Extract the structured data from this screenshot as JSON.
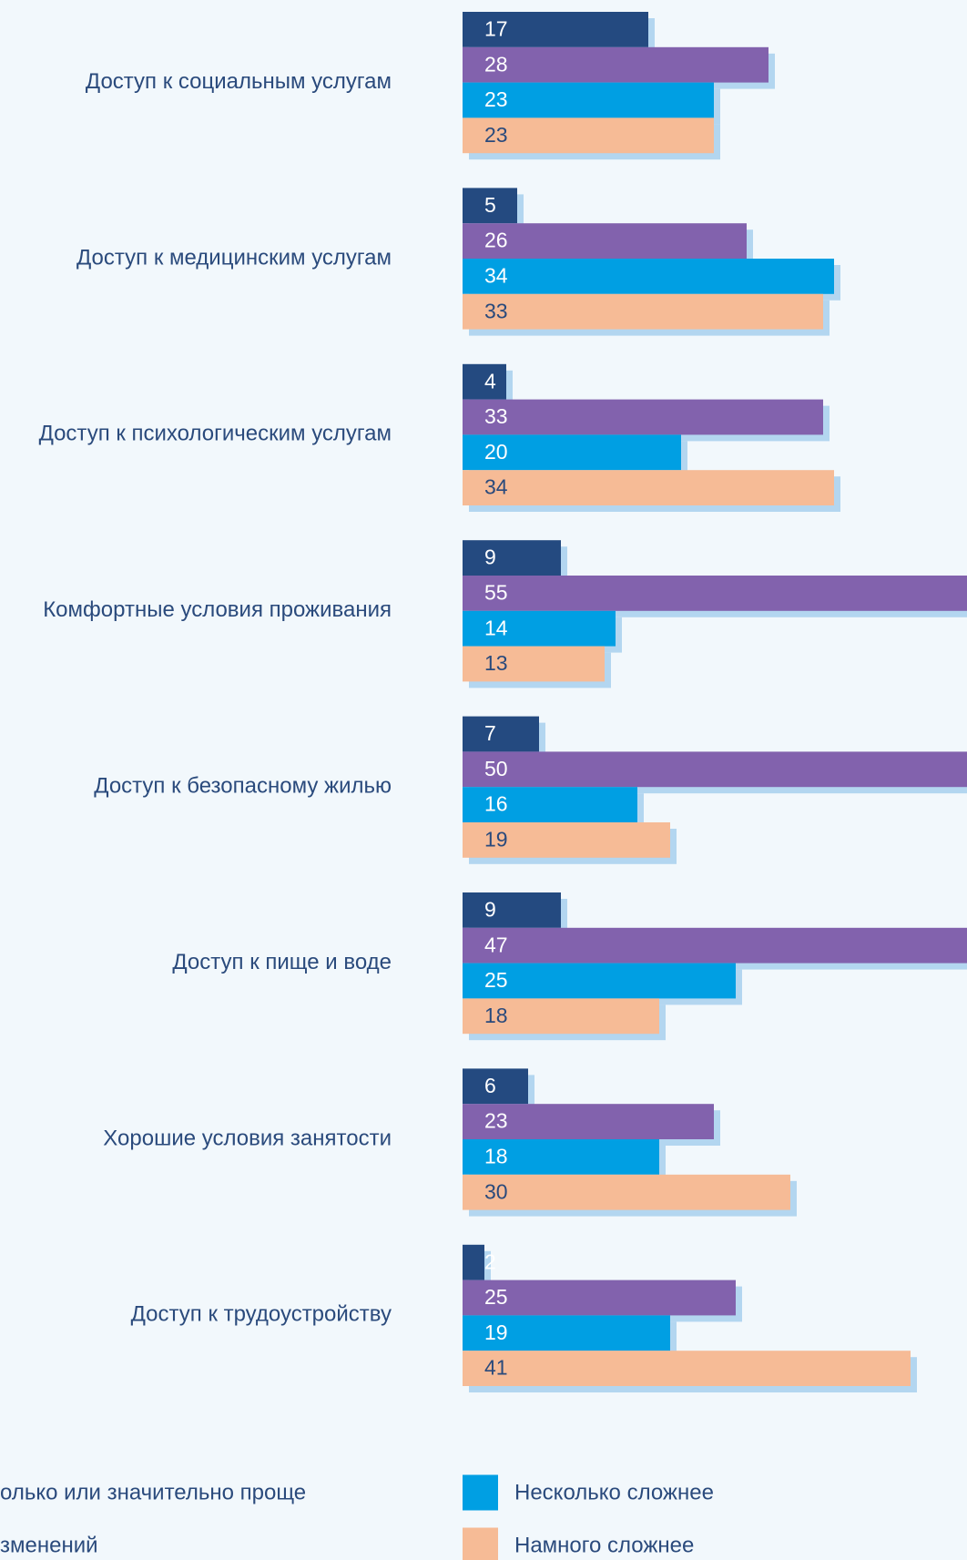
{
  "chart_data": {
    "type": "bar",
    "orientation": "horizontal",
    "categories": [
      "Доступ к социальным услугам",
      "Доступ к медицинским услугам",
      "Доступ к психологическим услугам",
      "Комфортные условия проживания",
      "Доступ к безопасному жилью",
      "Доступ к пище и воде",
      "Хорошие условия занятости",
      "Доступ к трудоустройству"
    ],
    "series": [
      {
        "name": "олько или значительно проще",
        "color": "#244a80",
        "values": [
          17,
          5,
          4,
          9,
          7,
          9,
          6,
          2
        ]
      },
      {
        "name": "зменений",
        "color": "#8262ad",
        "values": [
          28,
          26,
          33,
          55,
          50,
          47,
          23,
          25
        ]
      },
      {
        "name": "Несколько сложнее",
        "color": "#009fe3",
        "values": [
          23,
          34,
          20,
          14,
          16,
          25,
          18,
          19
        ]
      },
      {
        "name": "Намного сложнее",
        "color": "#f6bb96",
        "values": [
          23,
          33,
          34,
          13,
          19,
          18,
          30,
          41
        ]
      }
    ],
    "legend": "bottom"
  }
}
